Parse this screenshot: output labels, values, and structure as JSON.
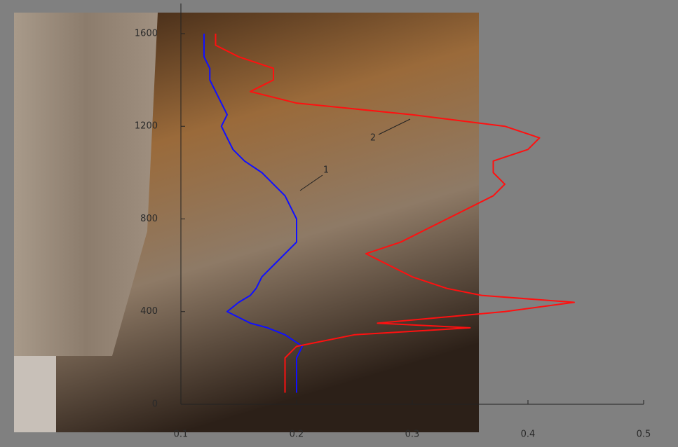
{
  "chart_data": {
    "type": "line",
    "y": [
      50,
      100,
      150,
      200,
      250,
      300,
      330,
      350,
      400,
      440,
      470,
      500,
      550,
      600,
      650,
      700,
      750,
      800,
      850,
      900,
      950,
      1000,
      1050,
      1100,
      1150,
      1200,
      1250,
      1300,
      1350,
      1400,
      1450,
      1500,
      1550,
      1600
    ],
    "series": [
      {
        "name": "1",
        "color": "#1010ff",
        "values": [
          0.2,
          0.2,
          0.2,
          0.2,
          0.205,
          0.19,
          0.175,
          0.16,
          0.14,
          0.15,
          0.16,
          0.165,
          0.17,
          0.18,
          0.19,
          0.2,
          0.2,
          0.2,
          0.195,
          0.19,
          0.18,
          0.17,
          0.155,
          0.145,
          0.14,
          0.135,
          0.14,
          0.135,
          0.13,
          0.125,
          0.125,
          0.12,
          0.12,
          0.12
        ]
      },
      {
        "name": "2",
        "color": "#ff1010",
        "values": [
          0.19,
          0.19,
          0.19,
          0.19,
          0.2,
          0.25,
          0.35,
          0.27,
          0.38,
          0.44,
          0.36,
          0.33,
          0.3,
          0.28,
          0.26,
          0.29,
          0.31,
          0.33,
          0.35,
          0.37,
          0.38,
          0.37,
          0.37,
          0.4,
          0.41,
          0.38,
          0.3,
          0.2,
          0.16,
          0.18,
          0.18,
          0.15,
          0.13,
          0.13
        ]
      }
    ],
    "xlim": [
      0.1,
      0.5
    ],
    "xticks": [
      0.1,
      0.2,
      0.3,
      0.4,
      0.5
    ],
    "ylim": [
      0,
      1730
    ],
    "yticks": [
      0,
      400,
      800,
      1200,
      1600
    ]
  }
}
